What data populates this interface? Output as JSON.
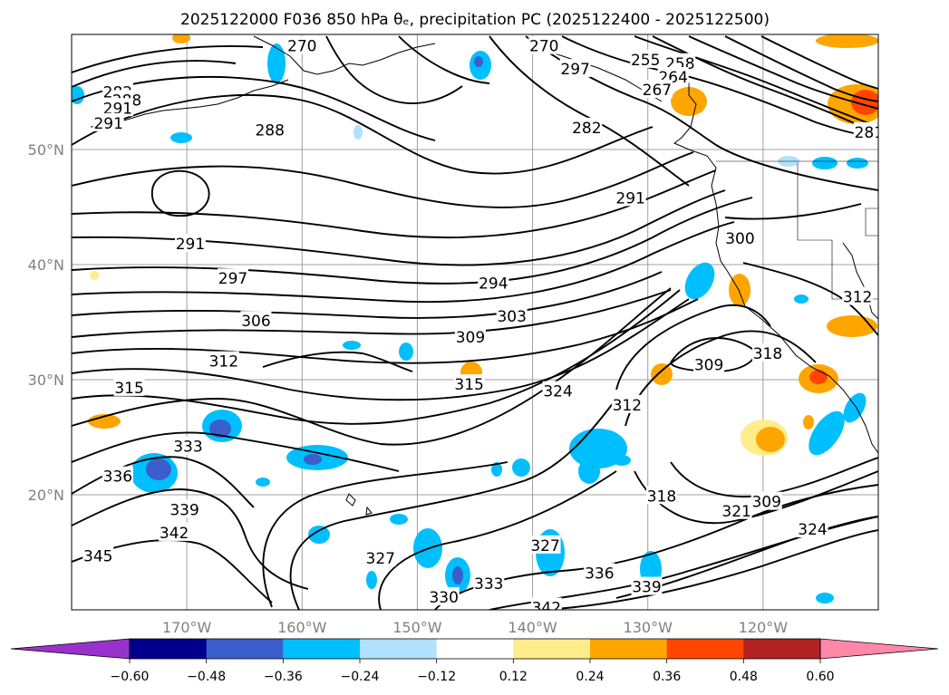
{
  "chart_data": {
    "type": "contour",
    "title": "2025122000 F036 850 hPa θₑ, precipitation PC (2025122400 - 2025122500)",
    "field_contoured": "850 hPa equivalent potential temperature (K)",
    "field_shaded": "precipitation PC",
    "x_range": [
      -180,
      -110
    ],
    "y_range": [
      10,
      60
    ],
    "x_ticks": [
      {
        "value": -170,
        "label": "170°W"
      },
      {
        "value": -160,
        "label": "160°W"
      },
      {
        "value": -150,
        "label": "150°W"
      },
      {
        "value": -140,
        "label": "140°W"
      },
      {
        "value": -130,
        "label": "130°W"
      },
      {
        "value": -120,
        "label": "120°W"
      }
    ],
    "y_ticks": [
      {
        "value": 50,
        "label": "50°N"
      },
      {
        "value": 40,
        "label": "40°N"
      },
      {
        "value": 30,
        "label": "30°N"
      },
      {
        "value": 20,
        "label": "20°N"
      }
    ],
    "grid": true,
    "colorbar": {
      "orientation": "horizontal",
      "extend": "both",
      "ticks": [
        "−0.60",
        "−0.48",
        "−0.36",
        "−0.24",
        "−0.12",
        "0.12",
        "0.24",
        "0.36",
        "0.48",
        "0.60"
      ],
      "colors": [
        "#9932cc",
        "#00008b",
        "#3a5fcd",
        "#00bfff",
        "#b0e2ff",
        "#ffffff",
        "#ffec8b",
        "#ffa500",
        "#ff4500",
        "#b22222",
        "#ff88a8"
      ]
    },
    "contour_labels": [
      {
        "text": "282",
        "lon": -176.0,
        "lat": 55.0
      },
      {
        "text": "288",
        "lon": -175.2,
        "lat": 54.3
      },
      {
        "text": "291",
        "lon": -176.0,
        "lat": 53.6
      },
      {
        "text": "291",
        "lon": -176.8,
        "lat": 52.3
      },
      {
        "text": "270",
        "lon": -160.0,
        "lat": 59.0
      },
      {
        "text": "270",
        "lon": -139.0,
        "lat": 59.0
      },
      {
        "text": "255",
        "lon": -130.2,
        "lat": 57.8
      },
      {
        "text": "258",
        "lon": -127.2,
        "lat": 57.5
      },
      {
        "text": "264",
        "lon": -127.8,
        "lat": 56.3
      },
      {
        "text": "267",
        "lon": -129.2,
        "lat": 55.2
      },
      {
        "text": "297",
        "lon": -136.3,
        "lat": 57.0
      },
      {
        "text": "282",
        "lon": -135.3,
        "lat": 51.9
      },
      {
        "text": "288",
        "lon": -162.8,
        "lat": 51.7
      },
      {
        "text": "281",
        "lon": -110.8,
        "lat": 51.5
      },
      {
        "text": "291",
        "lon": -131.5,
        "lat": 45.8
      },
      {
        "text": "300",
        "lon": -122.0,
        "lat": 42.3
      },
      {
        "text": "291",
        "lon": -169.7,
        "lat": 41.8
      },
      {
        "text": "297",
        "lon": -166.0,
        "lat": 38.8
      },
      {
        "text": "294",
        "lon": -143.4,
        "lat": 38.4
      },
      {
        "text": "312",
        "lon": -111.8,
        "lat": 37.2
      },
      {
        "text": "306",
        "lon": -164.0,
        "lat": 35.1
      },
      {
        "text": "303",
        "lon": -141.8,
        "lat": 35.5
      },
      {
        "text": "309",
        "lon": -145.4,
        "lat": 33.7
      },
      {
        "text": "318",
        "lon": -119.6,
        "lat": 32.3
      },
      {
        "text": "312",
        "lon": -166.8,
        "lat": 31.6
      },
      {
        "text": "309",
        "lon": -124.7,
        "lat": 31.3
      },
      {
        "text": "315",
        "lon": -175.0,
        "lat": 29.3
      },
      {
        "text": "315",
        "lon": -145.5,
        "lat": 29.6
      },
      {
        "text": "324",
        "lon": -137.8,
        "lat": 29.0
      },
      {
        "text": "312",
        "lon": -131.8,
        "lat": 27.8
      },
      {
        "text": "333",
        "lon": -169.9,
        "lat": 24.2
      },
      {
        "text": "336",
        "lon": -176.0,
        "lat": 21.6
      },
      {
        "text": "339",
        "lon": -170.2,
        "lat": 18.7
      },
      {
        "text": "318",
        "lon": -128.8,
        "lat": 19.9
      },
      {
        "text": "321",
        "lon": -122.3,
        "lat": 18.6
      },
      {
        "text": "309",
        "lon": -119.7,
        "lat": 19.4
      },
      {
        "text": "342",
        "lon": -171.1,
        "lat": 16.7
      },
      {
        "text": "324",
        "lon": -115.7,
        "lat": 17.0
      },
      {
        "text": "327",
        "lon": -138.9,
        "lat": 15.6
      },
      {
        "text": "345",
        "lon": -177.7,
        "lat": 14.7
      },
      {
        "text": "327",
        "lon": -153.2,
        "lat": 14.5
      },
      {
        "text": "336",
        "lon": -134.2,
        "lat": 13.2
      },
      {
        "text": "333",
        "lon": -143.8,
        "lat": 12.3
      },
      {
        "text": "339",
        "lon": -130.1,
        "lat": 12.0
      },
      {
        "text": "330",
        "lon": -147.7,
        "lat": 11.1
      },
      {
        "text": "342",
        "lon": -138.8,
        "lat": 10.2
      }
    ]
  }
}
